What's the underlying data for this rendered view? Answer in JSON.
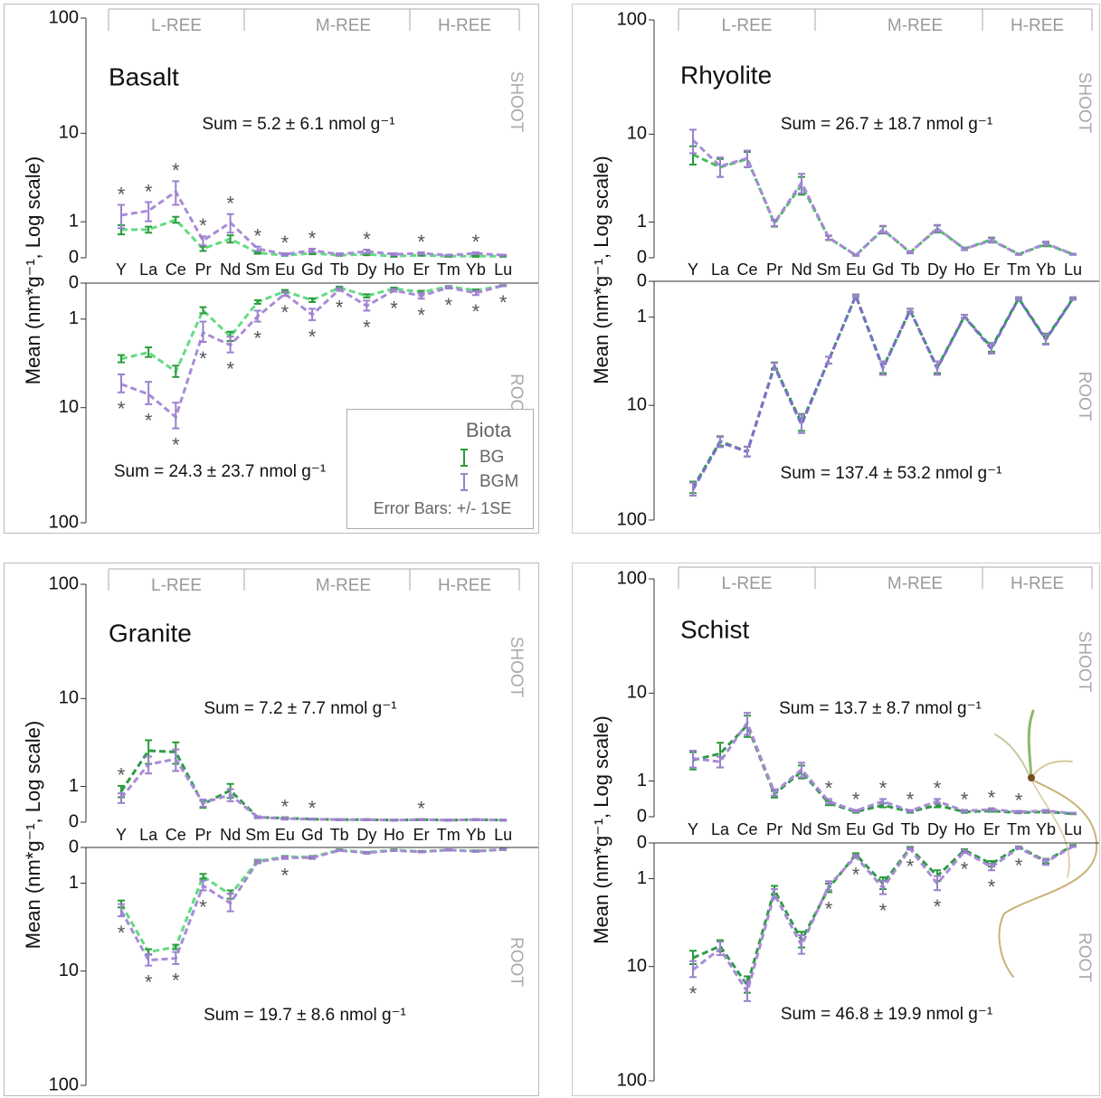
{
  "chart_data": [
    {
      "type": "line",
      "title": "Basalt",
      "yscale": "log(x+1)",
      "ylabel": "Mean (nm*g⁻¹, Log scale)",
      "categories": [
        "Y",
        "La",
        "Ce",
        "Pr",
        "Nd",
        "Sm",
        "Eu",
        "Gd",
        "Tb",
        "Dy",
        "Ho",
        "Er",
        "Tm",
        "Yb",
        "Lu"
      ],
      "groups": [
        "L-REE",
        "M-REE",
        "H-REE"
      ],
      "legend": {
        "title": "Biota",
        "note": "Error Bars: +/- 1SE"
      },
      "shoot": {
        "label": "SHOOT",
        "ylim": [
          0,
          100
        ],
        "yticks": [
          0,
          1,
          10,
          100
        ],
        "sum": "Sum = 5.2 ± 6.1 nmol g⁻¹",
        "marker": "*",
        "significant": [
          true,
          true,
          true,
          true,
          true,
          true,
          true,
          true,
          false,
          true,
          false,
          true,
          false,
          true,
          false
        ],
        "series": [
          {
            "name": "BG",
            "color": "#62dc84",
            "error_color": "#2a9a3a",
            "values": [
              0.72,
              0.72,
              1.08,
              0.19,
              0.44,
              0.1,
              0.05,
              0.09,
              0.05,
              0.07,
              0.03,
              0.05,
              0.03,
              0.03,
              0.03
            ],
            "errors": [
              0.15,
              0.1,
              0.12,
              0.05,
              0.1,
              0.02,
              0.01,
              0.02,
              0.01,
              0.02,
              0.01,
              0.01,
              0.01,
              0.01,
              0.01
            ]
          },
          {
            "name": "BGM",
            "color": "#a98bd6",
            "error_color": "#9c80cc",
            "values": [
              1.27,
              1.47,
              2.57,
              0.39,
              0.97,
              0.19,
              0.07,
              0.15,
              0.07,
              0.13,
              0.07,
              0.09,
              0.05,
              0.09,
              0.05
            ],
            "errors": [
              0.5,
              0.45,
              0.8,
              0.12,
              0.35,
              0.05,
              0.02,
              0.04,
              0.02,
              0.04,
              0.02,
              0.02,
              0.01,
              0.02,
              0.01
            ]
          }
        ]
      },
      "root": {
        "label": "ROOT",
        "inverted": true,
        "ylim": [
          0,
          100
        ],
        "yticks": [
          0,
          1,
          10,
          100
        ],
        "sum": "Sum = 24.3 ± 23.7 nmol g⁻¹",
        "marker": "*",
        "significant": [
          true,
          true,
          true,
          true,
          true,
          true,
          true,
          true,
          true,
          true,
          true,
          true,
          true,
          true,
          true
        ],
        "series": [
          {
            "name": "BG",
            "color": "#62dc84",
            "error_color": "#2a9a3a",
            "values": [
              3.3,
              2.8,
              4.5,
              0.69,
              1.8,
              0.44,
              0.17,
              0.39,
              0.09,
              0.28,
              0.11,
              0.19,
              0.07,
              0.15,
              0.05
            ],
            "errors": [
              0.3,
              0.35,
              0.6,
              0.1,
              0.25,
              0.05,
              0.03,
              0.05,
              0.02,
              0.04,
              0.02,
              0.03,
              0.01,
              0.02,
              0.01
            ]
          },
          {
            "name": "BGM",
            "color": "#a98bd6",
            "error_color": "#9c80cc",
            "values": [
              6.0,
              7.5,
              12.2,
              1.6,
              2.3,
              0.9,
              0.23,
              0.84,
              0.13,
              0.55,
              0.15,
              0.28,
              0.09,
              0.21,
              0.05
            ],
            "errors": [
              1.2,
              1.8,
              3.2,
              0.5,
              0.5,
              0.2,
              0.05,
              0.2,
              0.03,
              0.15,
              0.03,
              0.07,
              0.02,
              0.05,
              0.01
            ]
          }
        ]
      }
    },
    {
      "type": "line",
      "title": "Rhyolite",
      "yscale": "log(x+1)",
      "ylabel": "Mean (nm*g⁻¹, Log scale)",
      "categories": [
        "Y",
        "La",
        "Ce",
        "Pr",
        "Nd",
        "Sm",
        "Eu",
        "Gd",
        "Tb",
        "Dy",
        "Ho",
        "Er",
        "Tm",
        "Yb",
        "Lu"
      ],
      "groups": [
        "L-REE",
        "M-REE",
        "H-REE"
      ],
      "shoot": {
        "label": "SHOOT",
        "ylim": [
          0,
          100
        ],
        "yticks": [
          0,
          1,
          10,
          100
        ],
        "sum": "Sum = 26.7 ± 18.7 nmol g⁻¹",
        "marker": "*",
        "significant": [
          false,
          false,
          false,
          false,
          false,
          false,
          false,
          false,
          false,
          false,
          false,
          false,
          false,
          false,
          false
        ],
        "series": [
          {
            "name": "BG",
            "color": "#3fbf5c",
            "error_color": "#2a9a3a",
            "values": [
              6.4,
              4.8,
              5.8,
              0.95,
              3.1,
              0.47,
              0.05,
              0.72,
              0.11,
              0.75,
              0.19,
              0.42,
              0.07,
              0.3,
              0.07
            ],
            "errors": [
              1.3,
              1.0,
              1.0,
              0.12,
              0.7,
              0.06,
              0.01,
              0.12,
              0.02,
              0.12,
              0.03,
              0.06,
              0.01,
              0.05,
              0.01
            ]
          },
          {
            "name": "BGM",
            "color": "#a98bd6",
            "error_color": "#9c80cc",
            "values": [
              8.8,
              4.9,
              5.9,
              0.97,
              3.3,
              0.48,
              0.05,
              0.74,
              0.11,
              0.77,
              0.19,
              0.4,
              0.07,
              0.32,
              0.07
            ],
            "errors": [
              2.2,
              1.1,
              1.1,
              0.12,
              0.8,
              0.06,
              0.01,
              0.12,
              0.02,
              0.12,
              0.03,
              0.06,
              0.01,
              0.05,
              0.01
            ]
          }
        ]
      },
      "root": {
        "label": "ROOT",
        "inverted": true,
        "ylim": [
          0,
          100
        ],
        "yticks": [
          0,
          1,
          10,
          100
        ],
        "sum": "Sum = 137.4 ± 53.2 nmol g⁻¹",
        "marker": "*",
        "significant": [
          false,
          false,
          false,
          false,
          false,
          false,
          false,
          false,
          false,
          false,
          false,
          false,
          false,
          false,
          false
        ],
        "series": [
          {
            "name": "BG",
            "color": "#2f9a55",
            "error_color": "#2a9a3a",
            "values": [
              53,
              21,
              26,
              4.1,
              14.5,
              3.6,
              0.32,
              4.3,
              0.75,
              4.3,
              0.97,
              2.6,
              0.39,
              2.05,
              0.39
            ],
            "errors": [
              6,
              2,
              2.5,
              0.3,
              2.5,
              0.3,
              0.03,
              0.6,
              0.05,
              0.6,
              0.06,
              0.3,
              0.03,
              0.3,
              0.03
            ]
          },
          {
            "name": "BGM",
            "color": "#7a70c8",
            "error_color": "#9c80cc",
            "values": [
              55,
              21.5,
              26,
              4.2,
              15,
              3.6,
              0.33,
              4.4,
              0.76,
              4.4,
              0.98,
              2.7,
              0.4,
              2.1,
              0.4
            ],
            "errors": [
              7,
              2.2,
              2.6,
              0.35,
              2.8,
              0.3,
              0.03,
              0.7,
              0.06,
              0.7,
              0.07,
              0.35,
              0.03,
              0.3,
              0.03
            ]
          }
        ]
      }
    },
    {
      "type": "line",
      "title": "Granite",
      "yscale": "log(x+1)",
      "ylabel": "Mean (nm*g⁻¹, Log scale)",
      "categories": [
        "Y",
        "La",
        "Ce",
        "Pr",
        "Nd",
        "Sm",
        "Eu",
        "Gd",
        "Tb",
        "Dy",
        "Ho",
        "Er",
        "Tm",
        "Yb",
        "Lu"
      ],
      "groups": [
        "L-REE",
        "M-REE",
        "H-REE"
      ],
      "shoot": {
        "label": "SHOOT",
        "ylim": [
          0,
          100
        ],
        "yticks": [
          0,
          1,
          10,
          100
        ],
        "sum": "Sum = 7.2 ± 7.7 nmol g⁻¹",
        "marker": "*",
        "significant": [
          true,
          false,
          false,
          false,
          false,
          false,
          true,
          true,
          false,
          false,
          false,
          true,
          false,
          false,
          false
        ],
        "series": [
          {
            "name": "BG",
            "color": "#2e9a48",
            "error_color": "#2a9a3a",
            "values": [
              0.82,
              3.0,
              2.9,
              0.42,
              0.85,
              0.1,
              0.08,
              0.06,
              0.05,
              0.05,
              0.04,
              0.05,
              0.04,
              0.05,
              0.04
            ],
            "errors": [
              0.2,
              0.9,
              0.8,
              0.1,
              0.25,
              0.02,
              0.02,
              0.01,
              0.01,
              0.01,
              0.01,
              0.01,
              0.01,
              0.01,
              0.01
            ]
          },
          {
            "name": "BGM",
            "color": "#a98bd6",
            "error_color": "#9c80cc",
            "values": [
              0.6,
              2.07,
              2.4,
              0.45,
              0.7,
              0.1,
              0.07,
              0.06,
              0.05,
              0.05,
              0.04,
              0.05,
              0.04,
              0.05,
              0.04
            ],
            "errors": [
              0.15,
              0.5,
              0.7,
              0.1,
              0.2,
              0.02,
              0.02,
              0.01,
              0.01,
              0.01,
              0.01,
              0.01,
              0.01,
              0.01,
              0.01
            ]
          }
        ]
      },
      "root": {
        "label": "ROOT",
        "inverted": true,
        "ylim": [
          0,
          100
        ],
        "yticks": [
          0,
          1,
          10,
          100
        ],
        "sum": "Sum = 19.7 ± 8.6 nmol g⁻¹",
        "marker": "*",
        "significant": [
          true,
          true,
          true,
          true,
          false,
          false,
          true,
          false,
          false,
          false,
          false,
          false,
          false,
          false,
          false
        ],
        "series": [
          {
            "name": "BG",
            "color": "#5fdc80",
            "error_color": "#2a9a3a",
            "values": [
              2.0,
              6.6,
              5.9,
              0.75,
              1.5,
              0.3,
              0.2,
              0.2,
              0.05,
              0.1,
              0.05,
              0.08,
              0.05,
              0.07,
              0.04
            ],
            "errors": [
              0.2,
              0.4,
              0.3,
              0.08,
              0.2,
              0.03,
              0.02,
              0.02,
              0.01,
              0.01,
              0.01,
              0.01,
              0.01,
              0.01,
              0.01
            ]
          },
          {
            "name": "BGM",
            "color": "#a98bd6",
            "error_color": "#9c80cc",
            "values": [
              2.4,
              7.9,
              7.6,
              1.1,
              1.95,
              0.32,
              0.22,
              0.22,
              0.06,
              0.11,
              0.06,
              0.09,
              0.05,
              0.08,
              0.04
            ],
            "errors": [
              0.4,
              1.0,
              1.0,
              0.2,
              0.5,
              0.04,
              0.03,
              0.03,
              0.01,
              0.02,
              0.01,
              0.01,
              0.01,
              0.01,
              0.01
            ]
          }
        ]
      }
    },
    {
      "type": "line",
      "title": "Schist",
      "yscale": "log(x+1)",
      "ylabel": "Mean (nm*g⁻¹, Log scale)",
      "categories": [
        "Y",
        "La",
        "Ce",
        "Pr",
        "Nd",
        "Sm",
        "Eu",
        "Gd",
        "Tb",
        "Dy",
        "Ho",
        "Er",
        "Tm",
        "Yb",
        "Lu"
      ],
      "groups": [
        "L-REE",
        "M-REE",
        "H-REE"
      ],
      "shoot": {
        "label": "SHOOT",
        "ylim": [
          0,
          100
        ],
        "yticks": [
          0,
          1,
          10,
          100
        ],
        "sum": "Sum = 13.7 ± 8.7 nmol g⁻¹",
        "marker": "*",
        "significant": [
          false,
          false,
          false,
          false,
          false,
          true,
          true,
          true,
          true,
          true,
          true,
          true,
          true,
          false,
          false
        ],
        "series": [
          {
            "name": "BG",
            "color": "#2e9a48",
            "error_color": "#2a9a3a",
            "values": [
              2.0,
              2.4,
              4.9,
              0.55,
              1.4,
              0.3,
              0.1,
              0.25,
              0.1,
              0.25,
              0.1,
              0.12,
              0.08,
              0.1,
              0.06
            ],
            "errors": [
              0.5,
              0.8,
              1.2,
              0.1,
              0.3,
              0.05,
              0.02,
              0.05,
              0.02,
              0.05,
              0.02,
              0.02,
              0.01,
              0.02,
              0.01
            ]
          },
          {
            "name": "BGM",
            "color": "#a98bd6",
            "error_color": "#9c80cc",
            "values": [
              2.1,
              1.9,
              5.2,
              0.6,
              1.5,
              0.35,
              0.12,
              0.35,
              0.12,
              0.35,
              0.12,
              0.15,
              0.1,
              0.12,
              0.07
            ],
            "errors": [
              0.5,
              0.3,
              1.3,
              0.1,
              0.35,
              0.06,
              0.02,
              0.06,
              0.02,
              0.06,
              0.02,
              0.03,
              0.02,
              0.02,
              0.01
            ]
          }
        ]
      },
      "root": {
        "label": "ROOT",
        "inverted": true,
        "ylim": [
          0,
          100
        ],
        "yticks": [
          0,
          1,
          10,
          100
        ],
        "sum": "Sum = 46.8 ± 19.9 nmol g⁻¹",
        "marker": "*",
        "significant": [
          true,
          false,
          false,
          false,
          false,
          true,
          true,
          true,
          true,
          true,
          true,
          true,
          true,
          false,
          false
        ],
        "series": [
          {
            "name": "BG",
            "color": "#2e9a48",
            "error_color": "#2a9a3a",
            "values": [
              8.3,
              6.4,
              14.8,
              1.5,
              5.6,
              1.4,
              0.25,
              1.2,
              0.1,
              0.9,
              0.15,
              0.5,
              0.08,
              0.42,
              0.05
            ],
            "errors": [
              1.2,
              0.8,
              2.5,
              0.2,
              1.0,
              0.2,
              0.03,
              0.25,
              0.02,
              0.2,
              0.02,
              0.08,
              0.01,
              0.06,
              0.01
            ]
          },
          {
            "name": "BGM",
            "color": "#a98bd6",
            "error_color": "#9c80cc",
            "values": [
              10.7,
              6.8,
              17,
              1.7,
              6.3,
              1.3,
              0.3,
              1.4,
              0.12,
              1.2,
              0.18,
              0.6,
              0.1,
              0.45,
              0.07
            ],
            "errors": [
              1.8,
              1.0,
              3.5,
              0.25,
              1.3,
              0.2,
              0.04,
              0.3,
              0.02,
              0.3,
              0.03,
              0.1,
              0.02,
              0.08,
              0.01
            ]
          }
        ]
      }
    }
  ]
}
